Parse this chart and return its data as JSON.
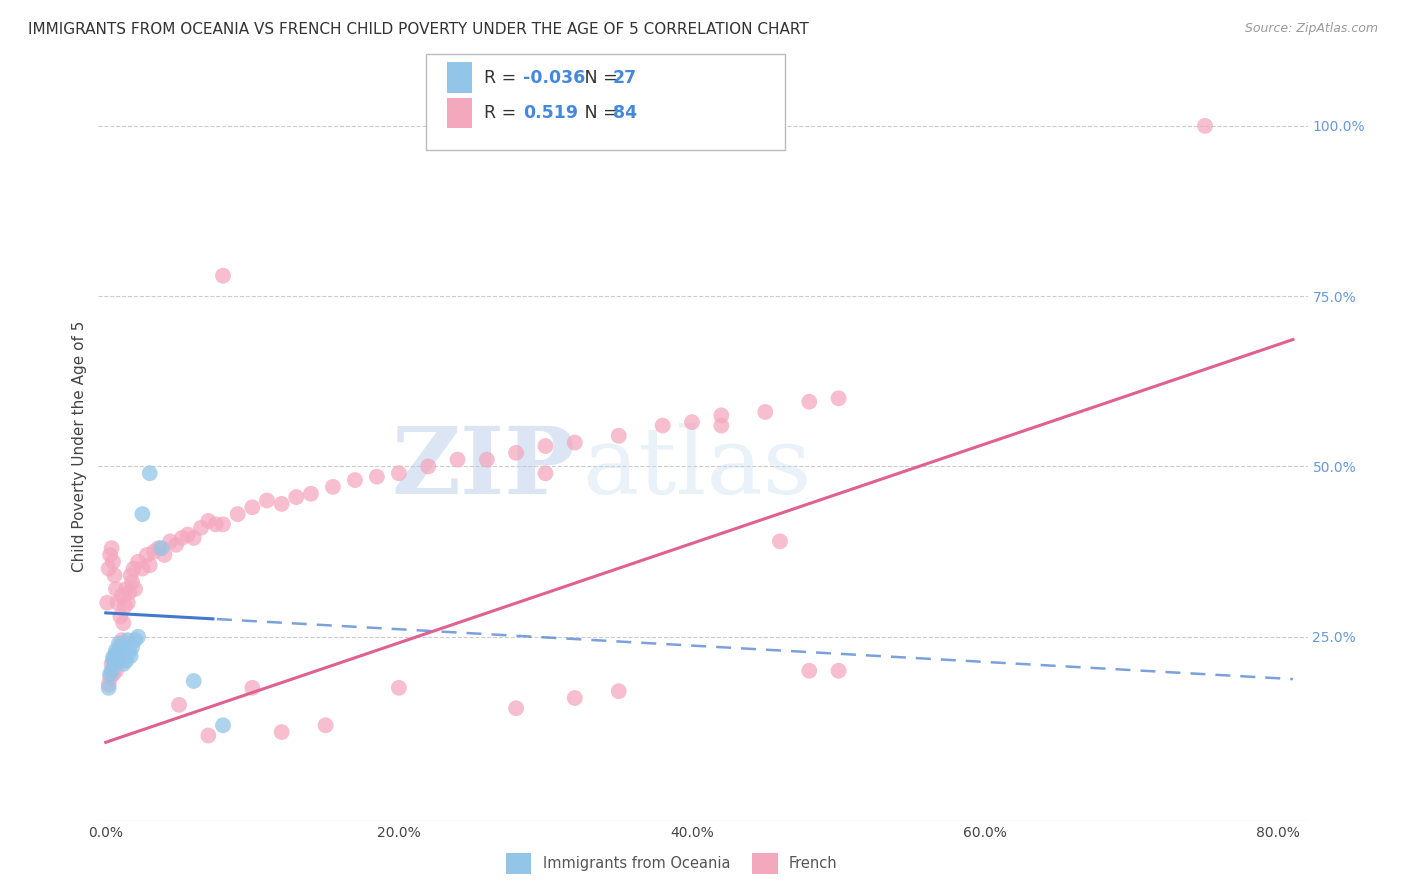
{
  "title": "IMMIGRANTS FROM OCEANIA VS FRENCH CHILD POVERTY UNDER THE AGE OF 5 CORRELATION CHART",
  "source": "Source: ZipAtlas.com",
  "ylabel": "Child Poverty Under the Age of 5",
  "right_ytick_labels": [
    "100.0%",
    "75.0%",
    "50.0%",
    "25.0%"
  ],
  "right_ytick_values": [
    1.0,
    0.75,
    0.5,
    0.25
  ],
  "xtick_labels": [
    "0.0%",
    "20.0%",
    "40.0%",
    "60.0%",
    "80.0%"
  ],
  "xtick_values": [
    0.0,
    0.2,
    0.4,
    0.6,
    0.8
  ],
  "xlim": [
    -0.005,
    0.82
  ],
  "ylim": [
    -0.02,
    1.08
  ],
  "blue_R": -0.036,
  "blue_N": 27,
  "pink_R": 0.519,
  "pink_N": 84,
  "blue_color": "#92C5E8",
  "pink_color": "#F4A8BE",
  "blue_line_color": "#4478CC",
  "pink_line_color": "#E06090",
  "background_color": "#FFFFFF",
  "grid_color": "#CCCCCC",
  "watermark_zip": "ZIP",
  "watermark_atlas": "atlas",
  "blue_scatter_x": [
    0.002,
    0.003,
    0.004,
    0.005,
    0.005,
    0.006,
    0.007,
    0.007,
    0.008,
    0.009,
    0.01,
    0.01,
    0.011,
    0.012,
    0.013,
    0.014,
    0.015,
    0.016,
    0.017,
    0.018,
    0.02,
    0.022,
    0.025,
    0.03,
    0.038,
    0.06,
    0.08
  ],
  "blue_scatter_y": [
    0.175,
    0.195,
    0.2,
    0.215,
    0.22,
    0.21,
    0.225,
    0.23,
    0.218,
    0.24,
    0.22,
    0.235,
    0.225,
    0.21,
    0.23,
    0.215,
    0.245,
    0.228,
    0.222,
    0.235,
    0.245,
    0.25,
    0.43,
    0.49,
    0.38,
    0.185,
    0.12
  ],
  "pink_scatter_x": [
    0.001,
    0.002,
    0.002,
    0.003,
    0.003,
    0.004,
    0.004,
    0.005,
    0.005,
    0.006,
    0.006,
    0.007,
    0.007,
    0.008,
    0.008,
    0.009,
    0.01,
    0.01,
    0.011,
    0.011,
    0.012,
    0.013,
    0.014,
    0.015,
    0.016,
    0.017,
    0.018,
    0.019,
    0.02,
    0.022,
    0.025,
    0.028,
    0.03,
    0.033,
    0.036,
    0.04,
    0.044,
    0.048,
    0.052,
    0.056,
    0.06,
    0.065,
    0.07,
    0.075,
    0.08,
    0.09,
    0.1,
    0.11,
    0.12,
    0.13,
    0.14,
    0.155,
    0.17,
    0.185,
    0.2,
    0.22,
    0.24,
    0.26,
    0.28,
    0.3,
    0.32,
    0.35,
    0.38,
    0.4,
    0.42,
    0.45,
    0.48,
    0.5,
    0.1,
    0.12,
    0.28,
    0.32,
    0.48,
    0.75,
    0.05,
    0.07,
    0.15,
    0.2,
    0.35,
    0.42,
    0.3,
    0.46,
    0.08,
    0.5
  ],
  "pink_scatter_y": [
    0.3,
    0.18,
    0.35,
    0.19,
    0.37,
    0.21,
    0.38,
    0.195,
    0.36,
    0.22,
    0.34,
    0.2,
    0.32,
    0.225,
    0.3,
    0.215,
    0.235,
    0.28,
    0.245,
    0.31,
    0.27,
    0.295,
    0.32,
    0.3,
    0.315,
    0.34,
    0.33,
    0.35,
    0.32,
    0.36,
    0.35,
    0.37,
    0.355,
    0.375,
    0.38,
    0.37,
    0.39,
    0.385,
    0.395,
    0.4,
    0.395,
    0.41,
    0.42,
    0.415,
    0.415,
    0.43,
    0.44,
    0.45,
    0.445,
    0.455,
    0.46,
    0.47,
    0.48,
    0.485,
    0.49,
    0.5,
    0.51,
    0.51,
    0.52,
    0.53,
    0.535,
    0.545,
    0.56,
    0.565,
    0.575,
    0.58,
    0.595,
    0.6,
    0.175,
    0.11,
    0.145,
    0.16,
    0.2,
    1.0,
    0.15,
    0.105,
    0.12,
    0.175,
    0.17,
    0.56,
    0.49,
    0.39,
    0.78,
    0.2
  ],
  "title_fontsize": 11,
  "axis_label_fontsize": 11,
  "tick_fontsize": 10,
  "legend_fontsize": 13
}
